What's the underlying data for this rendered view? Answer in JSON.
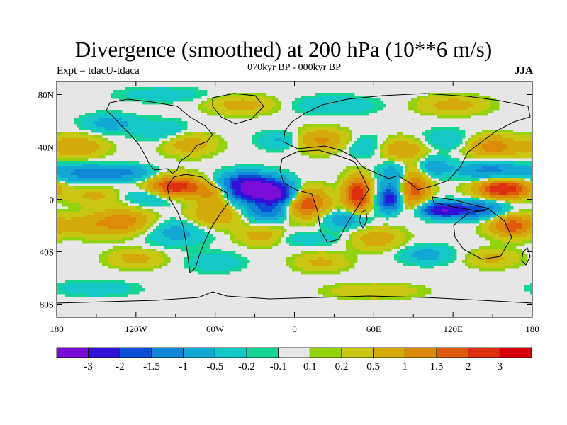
{
  "chart_data": {
    "type": "heatmap",
    "title": "Divergence (smoothed) at 200 hPa (10**6 m/s)",
    "subtitle_left": "Expt = tdacU-tdaca",
    "subtitle_center": "070kyr BP - 000kyr BP",
    "subtitle_right": "JJA",
    "xlabel": "",
    "ylabel": "",
    "xlim": [
      -180,
      180
    ],
    "ylim": [
      -90,
      90
    ],
    "x_ticks": [
      {
        "value": -180,
        "label": "180"
      },
      {
        "value": -120,
        "label": "120W"
      },
      {
        "value": -60,
        "label": "60W"
      },
      {
        "value": 0,
        "label": "0"
      },
      {
        "value": 60,
        "label": "60E"
      },
      {
        "value": 120,
        "label": "120E"
      },
      {
        "value": 180,
        "label": "180"
      }
    ],
    "y_ticks": [
      {
        "value": 80,
        "label": "80N"
      },
      {
        "value": 40,
        "label": "40N"
      },
      {
        "value": 0,
        "label": "0"
      },
      {
        "value": -40,
        "label": "40S"
      },
      {
        "value": -80,
        "label": "80S"
      }
    ],
    "colorbar": {
      "colors": [
        "#7a0ed8",
        "#3212d6",
        "#0b4fd4",
        "#0f86d6",
        "#12a8d2",
        "#14c8c8",
        "#16d494",
        "#e6e6e6",
        "#94d20e",
        "#c8c812",
        "#d4aa0a",
        "#dc8a0a",
        "#dc5a0a",
        "#dc3010",
        "#d8000a"
      ],
      "labels": [
        "-3",
        "-2",
        "-1.5",
        "-1",
        "-0.5",
        "-0.2",
        "-0.1",
        "0.1",
        "0.2",
        "0.5",
        "1",
        "1.5",
        "2",
        "3"
      ]
    },
    "features": [
      {
        "lon": -30,
        "lat": 7,
        "v": -3.4,
        "slon": 16,
        "slat": 7
      },
      {
        "lon": -12,
        "lat": 3,
        "v": -2.0,
        "slon": 10,
        "slat": 6
      },
      {
        "lon": -40,
        "lat": 14,
        "v": -1.0,
        "slon": 14,
        "slat": 5
      },
      {
        "lon": -90,
        "lat": 9,
        "v": 2.6,
        "slon": 14,
        "slat": 6
      },
      {
        "lon": -60,
        "lat": 5,
        "v": 1.2,
        "slon": 10,
        "slat": 6
      },
      {
        "lon": -158,
        "lat": 20,
        "v": -1.2,
        "slon": 16,
        "slat": 5
      },
      {
        "lon": -125,
        "lat": 20,
        "v": -1.0,
        "slon": 14,
        "slat": 4
      },
      {
        "lon": -105,
        "lat": 2,
        "v": -0.9,
        "slon": 18,
        "slat": 5
      },
      {
        "lon": -150,
        "lat": 3,
        "v": 0.6,
        "slon": 16,
        "slat": 5
      },
      {
        "lon": -130,
        "lat": -17,
        "v": 1.3,
        "slon": 16,
        "slat": 7
      },
      {
        "lon": -160,
        "lat": -20,
        "v": 0.6,
        "slon": 12,
        "slat": 6
      },
      {
        "lon": -90,
        "lat": -25,
        "v": -0.7,
        "slon": 18,
        "slat": 7
      },
      {
        "lon": -60,
        "lat": -12,
        "v": 1.0,
        "slon": 14,
        "slat": 7
      },
      {
        "lon": -20,
        "lat": -10,
        "v": -1.3,
        "slon": 12,
        "slat": 5
      },
      {
        "lon": 8,
        "lat": -3,
        "v": 2.0,
        "slon": 12,
        "slat": 8
      },
      {
        "lon": -25,
        "lat": -28,
        "v": 0.8,
        "slon": 12,
        "slat": 5
      },
      {
        "lon": 10,
        "lat": -30,
        "v": -0.4,
        "slon": 20,
        "slat": 4
      },
      {
        "lon": 48,
        "lat": 4,
        "v": 2.5,
        "slon": 7,
        "slat": 9
      },
      {
        "lon": 38,
        "lat": -15,
        "v": -1.0,
        "slon": 12,
        "slat": 5
      },
      {
        "lon": 62,
        "lat": -30,
        "v": 0.8,
        "slon": 14,
        "slat": 6
      },
      {
        "lon": 72,
        "lat": 0,
        "v": -2.5,
        "slon": 6,
        "slat": 6
      },
      {
        "lon": 75,
        "lat": 17,
        "v": -1.0,
        "slon": 8,
        "slat": 8
      },
      {
        "lon": 90,
        "lat": 8,
        "v": 1.8,
        "slon": 8,
        "slat": 10
      },
      {
        "lon": 105,
        "lat": 25,
        "v": -1.0,
        "slon": 8,
        "slat": 5
      },
      {
        "lon": 112,
        "lat": -8,
        "v": -2.8,
        "slon": 12,
        "slat": 4
      },
      {
        "lon": 140,
        "lat": -8,
        "v": -1.5,
        "slon": 14,
        "slat": 5
      },
      {
        "lon": 158,
        "lat": 8,
        "v": 2.6,
        "slon": 14,
        "slat": 5
      },
      {
        "lon": 165,
        "lat": -20,
        "v": 1.8,
        "slon": 12,
        "slat": 6
      },
      {
        "lon": 148,
        "lat": 22,
        "v": -1.2,
        "slon": 18,
        "slat": 5
      },
      {
        "lon": 150,
        "lat": 40,
        "v": 1.3,
        "slon": 14,
        "slat": 6
      },
      {
        "lon": 115,
        "lat": 45,
        "v": -0.5,
        "slon": 14,
        "slat": 6
      },
      {
        "lon": 80,
        "lat": 38,
        "v": 1.0,
        "slon": 14,
        "slat": 6
      },
      {
        "lon": 55,
        "lat": 40,
        "v": -0.6,
        "slon": 12,
        "slat": 6
      },
      {
        "lon": 20,
        "lat": 45,
        "v": 1.1,
        "slon": 14,
        "slat": 6
      },
      {
        "lon": -10,
        "lat": 45,
        "v": -0.6,
        "slon": 12,
        "slat": 5
      },
      {
        "lon": -80,
        "lat": 42,
        "v": 0.8,
        "slon": 14,
        "slat": 6
      },
      {
        "lon": -100,
        "lat": 52,
        "v": -0.5,
        "slon": 14,
        "slat": 6
      },
      {
        "lon": -165,
        "lat": 40,
        "v": 1.0,
        "slon": 14,
        "slat": 6
      },
      {
        "lon": -140,
        "lat": 58,
        "v": -0.7,
        "slon": 14,
        "slat": 5
      },
      {
        "lon": -40,
        "lat": 72,
        "v": 0.7,
        "slon": 18,
        "slat": 5
      },
      {
        "lon": 30,
        "lat": 72,
        "v": -0.5,
        "slon": 22,
        "slat": 5
      },
      {
        "lon": 120,
        "lat": 72,
        "v": 0.7,
        "slon": 18,
        "slat": 5
      },
      {
        "lon": -100,
        "lat": 80,
        "v": -0.4,
        "slon": 24,
        "slat": 4
      },
      {
        "lon": -120,
        "lat": -45,
        "v": 0.7,
        "slon": 14,
        "slat": 5
      },
      {
        "lon": -60,
        "lat": -48,
        "v": -0.5,
        "slon": 14,
        "slat": 5
      },
      {
        "lon": 20,
        "lat": -48,
        "v": 0.6,
        "slon": 14,
        "slat": 5
      },
      {
        "lon": 100,
        "lat": -42,
        "v": -0.7,
        "slon": 14,
        "slat": 5
      },
      {
        "lon": 150,
        "lat": -45,
        "v": 0.6,
        "slon": 14,
        "slat": 5
      },
      {
        "lon": -150,
        "lat": -68,
        "v": -0.5,
        "slon": 20,
        "slat": 4
      },
      {
        "lon": 60,
        "lat": -70,
        "v": 0.5,
        "slon": 24,
        "slat": 4
      }
    ]
  }
}
